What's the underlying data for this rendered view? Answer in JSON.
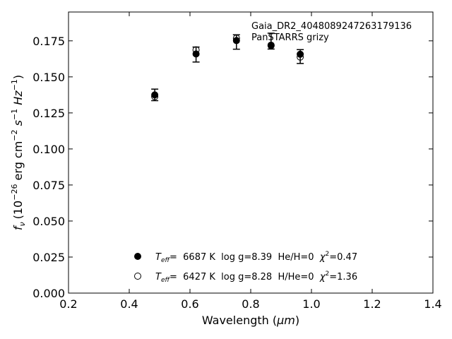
{
  "chart_data": {
    "type": "scatter",
    "xlabel_main": "Wavelength (",
    "xlabel_unit": "μm",
    "xlabel_end": ")",
    "ylabel_prefix": "f",
    "ylabel_sub": "ν",
    "ylabel_units": "(10",
    "ylabel_exp1": "−26",
    "ylabel_mid": " erg cm",
    "ylabel_exp2": "−2",
    "ylabel_s": " s",
    "ylabel_exp3": "−1",
    "ylabel_hz": " Hz",
    "ylabel_exp4": "−1",
    "ylabel_close": ")",
    "xlim": [
      0.2,
      1.4
    ],
    "ylim": [
      0.0,
      0.195
    ],
    "xticks": [
      0.2,
      0.4,
      0.6,
      0.8,
      1.0,
      1.2,
      1.4
    ],
    "yticks": [
      0.0,
      0.025,
      0.05,
      0.075,
      0.1,
      0.125,
      0.15,
      0.175
    ],
    "xtick_labels": [
      "0.2",
      "0.4",
      "0.6",
      "0.8",
      "1.0",
      "1.2",
      "1.4"
    ],
    "ytick_labels": [
      "0.000",
      "0.025",
      "0.050",
      "0.075",
      "0.100",
      "0.125",
      "0.150",
      "0.175"
    ],
    "annotation": {
      "line1": "Gaia_DR2_4048089247263179136",
      "line2": "PanSTARRS grizy"
    },
    "observed": {
      "x": [
        0.484,
        0.62,
        0.753,
        0.867,
        0.963
      ],
      "y": [
        0.1375,
        0.1655,
        0.1742,
        0.1748,
        0.1641
      ],
      "err": [
        0.004,
        0.0052,
        0.005,
        0.0055,
        0.0048
      ]
    },
    "series": [
      {
        "marker": "filled",
        "x": [
          0.484,
          0.62,
          0.753,
          0.867,
          0.963
        ],
        "y": [
          0.1375,
          0.1659,
          0.1752,
          0.1717,
          0.1657
        ],
        "legend": {
          "teff_label": "T",
          "teff_sub": "eff",
          "rest": "=  6687 K  log g=8.39  He/H=0  ",
          "chi": "χ",
          "chi_sup": "2",
          "chi_val": "=0.47"
        }
      },
      {
        "marker": "open",
        "x": [
          0.484,
          0.62,
          0.753,
          0.867,
          0.963
        ],
        "y": [
          0.1363,
          0.1687,
          0.1768,
          0.172,
          0.1638
        ],
        "legend": {
          "teff_label": "T",
          "teff_sub": "eff",
          "rest": "=  6427 K  log g=8.28  H/He=0  ",
          "chi": "χ",
          "chi_sup": "2",
          "chi_val": "=1.36"
        }
      }
    ]
  }
}
